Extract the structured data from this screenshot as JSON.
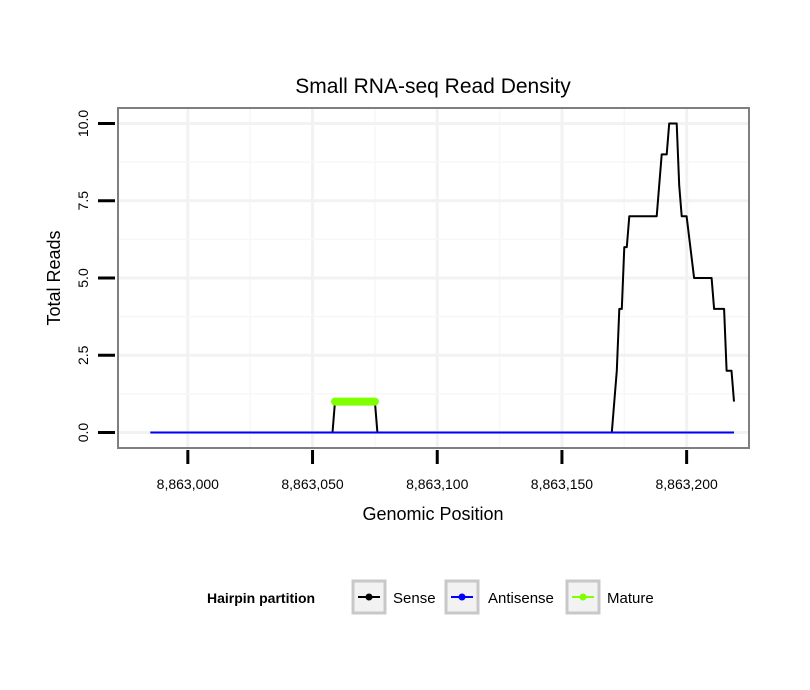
{
  "chart_data": {
    "type": "line",
    "title": "Small RNA-seq Read Density",
    "xlabel": "Genomic Position",
    "ylabel": "Total Reads",
    "xlim": [
      8862972,
      8863225
    ],
    "ylim": [
      -0.5,
      10.5
    ],
    "x_ticks": [
      8863000,
      8863050,
      8863100,
      8863150,
      8863200
    ],
    "x_tick_labels": [
      "8,863,000",
      "8,863,050",
      "8,863,100",
      "8,863,150",
      "8,863,200"
    ],
    "y_ticks": [
      0,
      2.5,
      5,
      7.5,
      10
    ],
    "y_tick_labels": [
      "0.0",
      "2.5",
      "5.0",
      "7.5",
      "10.0"
    ],
    "grid": true,
    "series": [
      {
        "name": "Sense",
        "color": "#000000",
        "x": [
          8862985,
          8863058,
          8863059,
          8863075,
          8863076,
          8863170,
          8863171,
          8863172,
          8863173,
          8863174,
          8863175,
          8863176,
          8863177,
          8863178,
          8863179,
          8863180,
          8863188,
          8863189,
          8863190,
          8863191,
          8863192,
          8863193,
          8863194,
          8863195,
          8863196,
          8863197,
          8863198,
          8863199,
          8863200,
          8863203,
          8863204,
          8863210,
          8863211,
          8863215,
          8863216,
          8863218,
          8863219
        ],
        "y": [
          0,
          0,
          1,
          1,
          0,
          0,
          1,
          2,
          4,
          4,
          6,
          6,
          7,
          7,
          7,
          7,
          7,
          8,
          9,
          9,
          9,
          10,
          10,
          10,
          10,
          8,
          7,
          7,
          7,
          5,
          5,
          5,
          4,
          4,
          2,
          2,
          1
        ]
      },
      {
        "name": "Antisense",
        "color": "#0000ff",
        "x": [
          8862985,
          8863219
        ],
        "y": [
          0,
          0
        ]
      },
      {
        "name": "Mature",
        "color": "#7fff00",
        "x": [
          8863059,
          8863075
        ],
        "y": [
          1,
          1
        ]
      }
    ],
    "legend": {
      "title": "Hairpin partition",
      "position": "bottom",
      "items": [
        "Sense",
        "Antisense",
        "Mature"
      ]
    }
  }
}
